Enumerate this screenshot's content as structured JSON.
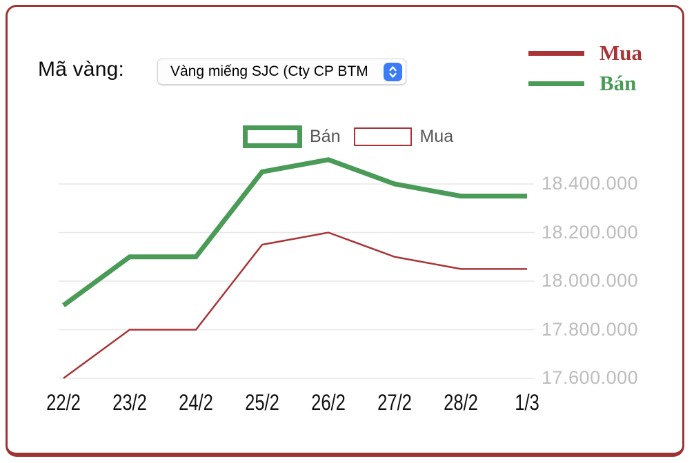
{
  "header": {
    "label": "Mã vàng:",
    "select": {
      "value": "Vàng miếng SJC (Cty CP BTM"
    }
  },
  "legend_right": {
    "items": [
      {
        "label": "Mua",
        "color": "#a93438"
      },
      {
        "label": "Bán",
        "color": "#4a9b57"
      }
    ]
  },
  "chart_legend": {
    "items": [
      {
        "label": "Bán",
        "color": "#4a9b57",
        "border_width": 7
      },
      {
        "label": "Mua",
        "color": "#a93438",
        "border_width": 2
      }
    ],
    "label_color": "#555555"
  },
  "chart_data": {
    "type": "line",
    "categories": [
      "22/2",
      "23/2",
      "24/2",
      "25/2",
      "26/2",
      "27/2",
      "28/2",
      "1/3"
    ],
    "series": [
      {
        "name": "Bán",
        "color": "#4a9b57",
        "stroke_width": 7,
        "values": [
          17900000,
          18100000,
          18100000,
          18450000,
          18500000,
          18400000,
          18350000,
          18350000
        ]
      },
      {
        "name": "Mua",
        "color": "#a93438",
        "stroke_width": 2.5,
        "values": [
          17600000,
          17800000,
          17800000,
          18150000,
          18200000,
          18100000,
          18050000,
          18050000
        ]
      }
    ],
    "y_ticks": [
      {
        "value": 18400000,
        "label": "18.400.000"
      },
      {
        "value": 18200000,
        "label": "18.200.000"
      },
      {
        "value": 18000000,
        "label": "18.000.000"
      },
      {
        "value": 17800000,
        "label": "17.800.000"
      },
      {
        "value": 17600000,
        "label": "17.600.000"
      }
    ],
    "ylim": [
      17550000,
      18550000
    ],
    "grid": true,
    "grid_color": "#e7e7e7",
    "x_label_color": "#111111",
    "y_label_color": "#bdbdbd",
    "legend_position": "top-center",
    "xlabel": "",
    "ylabel": "",
    "title": ""
  },
  "frame": {
    "border_color": "#9c3434",
    "select_blue": "#3e7bf7"
  }
}
